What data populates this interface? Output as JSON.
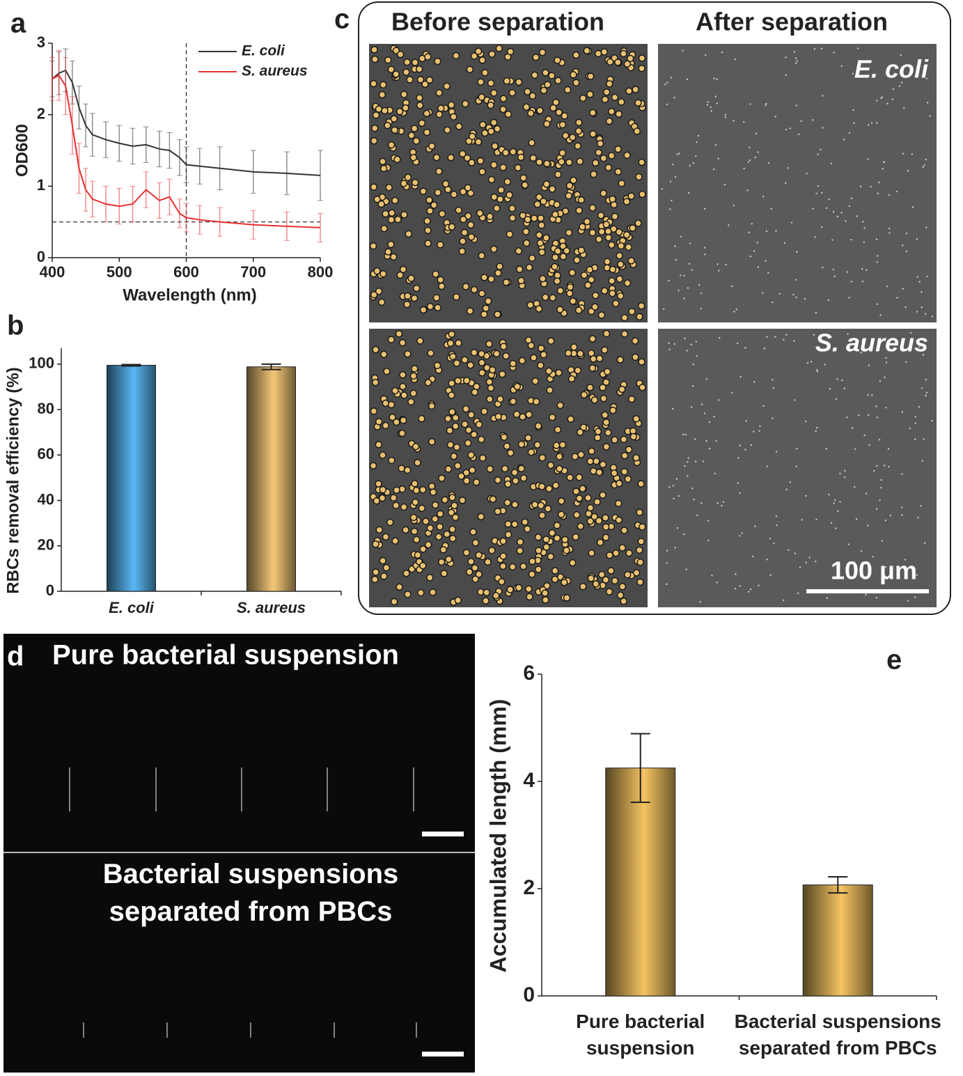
{
  "chart_data": [
    {
      "type": "line",
      "label": "a",
      "x_label": "Wavelength (nm)",
      "y_label": "OD600",
      "x": [
        400,
        410,
        420,
        430,
        440,
        450,
        460,
        480,
        500,
        520,
        540,
        560,
        575,
        590,
        600,
        620,
        650,
        700,
        750,
        800
      ],
      "series": [
        {
          "name": "E. coli",
          "color": "#333333",
          "values": [
            2.5,
            2.58,
            2.62,
            2.45,
            2.1,
            1.85,
            1.72,
            1.65,
            1.6,
            1.56,
            1.58,
            1.52,
            1.5,
            1.4,
            1.3,
            1.28,
            1.25,
            1.2,
            1.18,
            1.15
          ],
          "errors": [
            0.25,
            0.3,
            0.3,
            0.3,
            0.3,
            0.3,
            0.3,
            0.25,
            0.25,
            0.25,
            0.25,
            0.25,
            0.25,
            0.25,
            0.25,
            0.25,
            0.3,
            0.3,
            0.3,
            0.35
          ]
        },
        {
          "name": "S. aureus",
          "color": "#e83030",
          "values": [
            2.5,
            2.55,
            2.4,
            1.85,
            1.25,
            0.95,
            0.82,
            0.75,
            0.72,
            0.75,
            0.95,
            0.8,
            0.85,
            0.62,
            0.56,
            0.53,
            0.5,
            0.46,
            0.44,
            0.42
          ],
          "errors": [
            0.3,
            0.35,
            0.4,
            0.4,
            0.35,
            0.3,
            0.25,
            0.25,
            0.25,
            0.25,
            0.25,
            0.25,
            0.25,
            0.2,
            0.2,
            0.2,
            0.2,
            0.2,
            0.2,
            0.2
          ]
        }
      ],
      "xlim": [
        400,
        800
      ],
      "xticks": [
        400,
        500,
        600,
        700,
        800
      ],
      "ylim": [
        0,
        3
      ],
      "yticks": [
        0,
        1,
        2,
        3
      ],
      "vline": 600,
      "hline": 0.5,
      "legend": "upper right"
    },
    {
      "type": "bar",
      "label": "b",
      "y_label": "RBCs removal efficiency (%)",
      "categories": [
        "E. coli",
        "S. aureus"
      ],
      "values": [
        99.5,
        98.8
      ],
      "errors": [
        0.3,
        1.2
      ],
      "colors": [
        "#5ab8f5",
        "#f5c878"
      ],
      "ylim": [
        0,
        107
      ],
      "yticks": [
        0,
        20,
        40,
        60,
        80,
        100
      ]
    },
    {
      "type": "bar",
      "label": "e",
      "y_label": "Accumulated length (mm)",
      "categories": [
        "Pure bacterial suspension",
        "Bacterial suspensions separated from PBCs"
      ],
      "values": [
        4.25,
        2.07
      ],
      "errors": [
        0.64,
        0.15
      ],
      "colors": [
        "#f5c462",
        "#f5c462"
      ],
      "ylim": [
        0,
        6
      ],
      "yticks": [
        0,
        2,
        4,
        6
      ]
    }
  ],
  "panel_c": {
    "label": "c",
    "columns": [
      "Before separation",
      "After separation"
    ],
    "rows": [
      "E. coli",
      "S. aureus"
    ],
    "scale_bar": "100 μm"
  },
  "panel_d": {
    "label": "d",
    "titles": [
      "Pure bacterial suspension",
      "Bacterial suspensions separated from PBCs"
    ]
  }
}
